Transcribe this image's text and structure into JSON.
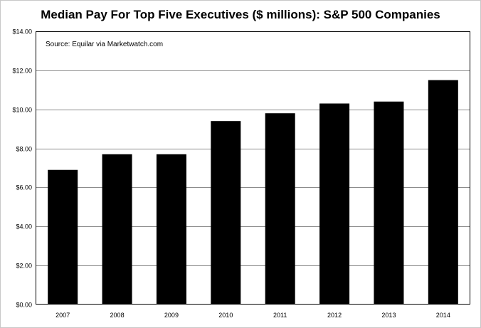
{
  "chart_data": {
    "type": "bar",
    "title": "Median Pay For Top Five Executives ($ millions):  S&P 500 Companies",
    "annotation": "Source:  Equilar via Marketwatch.com",
    "categories": [
      "2007",
      "2008",
      "2009",
      "2010",
      "2011",
      "2012",
      "2013",
      "2014"
    ],
    "values": [
      6.9,
      7.7,
      7.7,
      9.4,
      9.8,
      10.3,
      10.4,
      11.5
    ],
    "ylim": [
      0,
      14
    ],
    "yticks": [
      0,
      2,
      4,
      6,
      8,
      10,
      12,
      14
    ],
    "ytick_labels": [
      "$0.00",
      "$2.00",
      "$4.00",
      "$6.00",
      "$8.00",
      "$10.00",
      "$12.00",
      "$14.00"
    ],
    "xlabel": "",
    "ylabel": "",
    "grid": true,
    "legend": "none",
    "bar_color": "#000000",
    "grid_color": "#8c8c8c"
  }
}
